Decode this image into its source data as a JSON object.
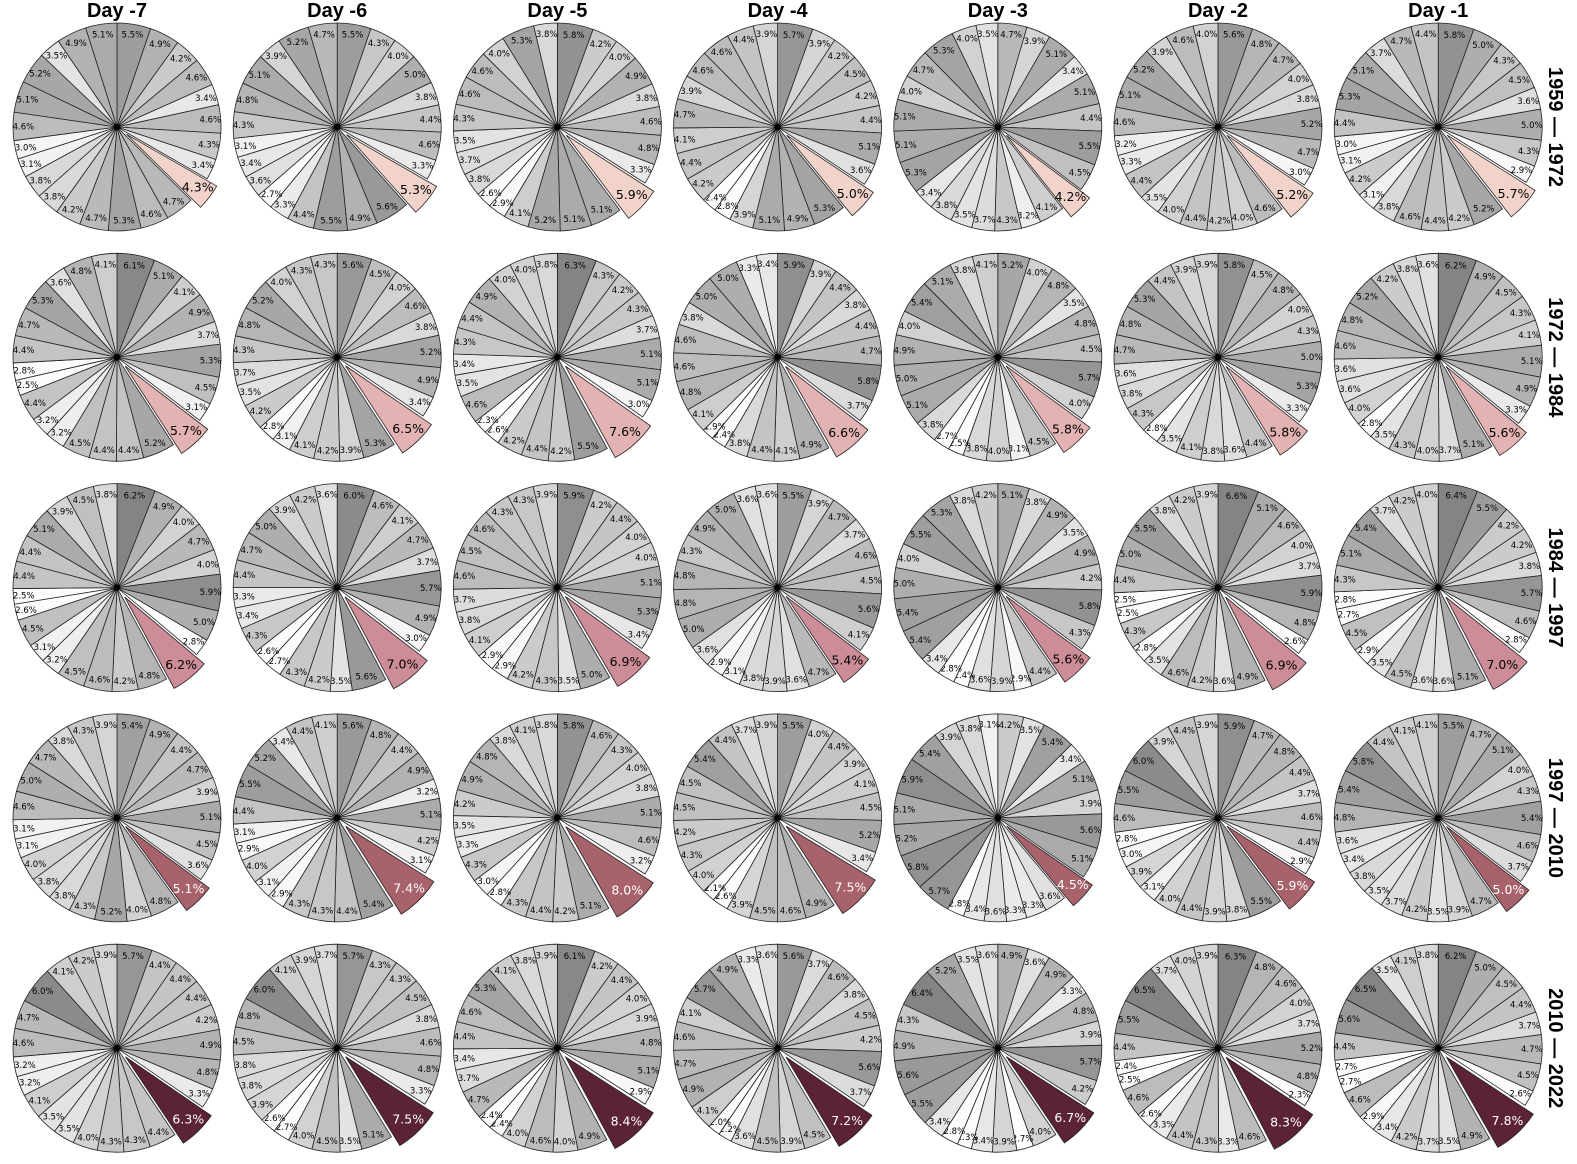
{
  "chart_data": {
    "type": "pie",
    "layout": "grid of pie charts, one per day (columns) and period (rows); 24 slices each, one slice highlighted and exploded",
    "columns": [
      "Day -7",
      "Day -6",
      "Day -5",
      "Day -4",
      "Day -3",
      "Day -2",
      "Day -1"
    ],
    "rows": [
      "1959 — 1972",
      "1972 — 1984",
      "1984 — 1997",
      "1997 — 2010",
      "2010 — 2022"
    ],
    "highlight_colors": [
      "#f2d3ca",
      "#e3b2b2",
      "#cc8c98",
      "#a8626c",
      "#5c2334"
    ],
    "slice_order": "clockwise from 12 o'clock",
    "pies": [
      [
        [
          5.5,
          4.9,
          4.2,
          4.6,
          3.4,
          4.6,
          4.3,
          3.4,
          4.3,
          4.7,
          4.6,
          5.3,
          4.7,
          4.2,
          3.8,
          3.8,
          3.1,
          3.0,
          4.6,
          5.1,
          5.2,
          3.5,
          4.9,
          5.1
        ],
        [
          5.5,
          4.3,
          4.0,
          5.0,
          3.8,
          4.4,
          4.6,
          3.3,
          5.3,
          5.6,
          4.9,
          5.5,
          4.4,
          3.3,
          2.7,
          3.6,
          3.4,
          3.1,
          4.3,
          4.8,
          5.1,
          3.9,
          5.2,
          4.7
        ],
        [
          5.8,
          4.2,
          4.0,
          4.9,
          3.8,
          4.6,
          4.8,
          3.3,
          5.9,
          5.1,
          5.1,
          5.2,
          4.1,
          2.9,
          2.6,
          3.8,
          3.7,
          3.5,
          4.3,
          4.6,
          4.6,
          4.0,
          5.3,
          3.8
        ],
        [
          5.7,
          3.9,
          4.2,
          4.5,
          4.2,
          4.4,
          5.1,
          3.6,
          5.0,
          5.3,
          4.9,
          5.1,
          3.9,
          2.8,
          2.4,
          4.2,
          4.4,
          4.1,
          4.7,
          3.9,
          4.6,
          4.6,
          4.4,
          3.9
        ],
        [
          4.7,
          3.9,
          5.1,
          3.4,
          5.1,
          4.4,
          5.5,
          4.5,
          4.2,
          4.1,
          3.2,
          4.3,
          3.7,
          3.5,
          3.8,
          3.4,
          5.3,
          5.1,
          5.1,
          4.0,
          4.7,
          5.3,
          4.0,
          3.5
        ],
        [
          5.6,
          4.8,
          4.7,
          4.0,
          3.8,
          5.2,
          4.7,
          3.0,
          5.2,
          4.6,
          4.0,
          4.2,
          4.4,
          4.0,
          3.5,
          4.4,
          3.3,
          3.2,
          4.6,
          5.1,
          5.2,
          3.9,
          4.6,
          4.0
        ],
        [
          5.8,
          5.0,
          4.3,
          4.5,
          3.6,
          5.0,
          4.3,
          2.9,
          5.7,
          5.2,
          4.2,
          4.4,
          4.6,
          3.8,
          3.1,
          4.2,
          3.1,
          3.0,
          4.4,
          5.3,
          5.1,
          3.7,
          4.7,
          4.4
        ]
      ],
      [
        [
          6.1,
          5.1,
          4.1,
          4.9,
          3.7,
          5.3,
          4.5,
          3.1,
          5.7,
          5.2,
          4.4,
          4.4,
          4.5,
          3.2,
          3.2,
          4.4,
          2.5,
          2.8,
          4.4,
          4.7,
          5.3,
          3.6,
          4.8,
          4.1
        ],
        [
          5.6,
          4.5,
          4.0,
          4.6,
          3.8,
          5.2,
          4.9,
          3.4,
          6.5,
          5.3,
          3.9,
          4.2,
          4.1,
          3.1,
          2.8,
          4.2,
          3.5,
          3.7,
          4.3,
          4.8,
          5.2,
          4.0,
          4.3,
          4.3
        ],
        [
          6.3,
          4.3,
          4.2,
          4.3,
          3.7,
          5.1,
          5.1,
          3.0,
          7.6,
          5.5,
          4.2,
          4.4,
          4.2,
          2.6,
          2.3,
          4.6,
          3.5,
          3.4,
          4.3,
          4.4,
          4.9,
          4.0,
          4.0,
          3.8
        ],
        [
          5.9,
          3.9,
          4.4,
          3.8,
          4.4,
          4.7,
          5.8,
          3.7,
          6.6,
          4.9,
          4.1,
          4.4,
          3.8,
          2.4,
          1.9,
          4.1,
          4.8,
          4.6,
          4.6,
          3.8,
          5.0,
          5.0,
          3.3,
          3.4
        ],
        [
          5.2,
          4.0,
          4.8,
          3.5,
          4.8,
          4.5,
          5.7,
          4.0,
          5.8,
          4.5,
          3.1,
          4.0,
          3.8,
          2.5,
          2.7,
          3.8,
          5.1,
          5.0,
          4.9,
          4.0,
          5.4,
          5.1,
          3.8,
          4.1
        ],
        [
          5.8,
          4.5,
          4.8,
          4.0,
          4.3,
          5.0,
          5.3,
          3.3,
          5.8,
          4.4,
          3.6,
          3.8,
          4.1,
          3.5,
          2.8,
          4.3,
          3.8,
          3.6,
          4.7,
          4.8,
          5.3,
          4.4,
          3.9,
          3.9
        ],
        [
          6.2,
          4.9,
          4.5,
          4.3,
          4.1,
          5.1,
          4.9,
          3.3,
          5.6,
          5.1,
          3.7,
          4.0,
          4.3,
          3.5,
          2.8,
          4.0,
          3.6,
          3.6,
          4.6,
          4.8,
          5.2,
          4.2,
          3.8,
          3.6
        ]
      ],
      [
        [
          6.2,
          4.9,
          4.0,
          4.7,
          4.0,
          5.9,
          5.0,
          2.8,
          6.2,
          4.8,
          4.2,
          4.6,
          4.5,
          3.2,
          3.1,
          4.5,
          2.6,
          2.5,
          4.4,
          4.4,
          5.1,
          3.9,
          4.5,
          3.8
        ],
        [
          6.0,
          4.6,
          4.1,
          4.7,
          3.7,
          5.7,
          4.9,
          3.0,
          7.0,
          5.6,
          3.5,
          4.2,
          4.3,
          2.7,
          2.6,
          4.3,
          3.4,
          3.3,
          4.4,
          4.7,
          5.0,
          3.9,
          4.2,
          3.6
        ],
        [
          5.9,
          4.2,
          4.4,
          4.0,
          4.0,
          5.1,
          5.3,
          3.4,
          6.9,
          5.0,
          3.5,
          4.3,
          4.2,
          2.9,
          2.9,
          4.1,
          3.8,
          3.7,
          4.6,
          4.5,
          4.6,
          4.3,
          4.3,
          3.9
        ],
        [
          5.5,
          3.9,
          4.7,
          3.7,
          4.6,
          4.5,
          5.6,
          4.1,
          5.4,
          4.7,
          3.6,
          3.9,
          3.8,
          3.1,
          2.9,
          3.6,
          5.0,
          4.8,
          4.8,
          4.3,
          4.9,
          5.0,
          3.6,
          3.6
        ],
        [
          5.1,
          3.8,
          4.9,
          3.5,
          4.9,
          4.2,
          5.8,
          4.3,
          5.6,
          4.4,
          2.9,
          3.9,
          3.6,
          2.4,
          2.8,
          3.4,
          5.4,
          5.4,
          5.0,
          4.0,
          5.5,
          5.3,
          3.8,
          4.2
        ],
        [
          6.6,
          5.1,
          4.6,
          4.0,
          3.7,
          5.9,
          4.8,
          2.6,
          6.9,
          4.9,
          3.6,
          4.2,
          4.6,
          3.5,
          2.8,
          4.3,
          2.5,
          2.5,
          4.4,
          5.0,
          5.5,
          3.8,
          4.2,
          3.9
        ],
        [
          6.4,
          5.5,
          4.2,
          4.2,
          3.8,
          5.7,
          4.6,
          2.8,
          7.0,
          5.1,
          3.6,
          3.6,
          4.5,
          3.5,
          2.9,
          4.5,
          2.7,
          2.8,
          4.3,
          5.1,
          5.4,
          3.7,
          4.2,
          4.0
        ]
      ],
      [
        [
          5.4,
          4.9,
          4.4,
          4.7,
          3.9,
          5.1,
          4.5,
          3.6,
          5.1,
          4.8,
          4.0,
          5.2,
          4.3,
          3.8,
          3.8,
          4.0,
          3.1,
          3.1,
          4.6,
          5.0,
          4.7,
          3.8,
          4.3,
          3.9
        ],
        [
          5.6,
          4.8,
          4.4,
          4.9,
          3.2,
          5.1,
          4.2,
          3.1,
          7.4,
          5.4,
          4.4,
          4.3,
          4.3,
          2.9,
          3.1,
          4.0,
          2.9,
          3.1,
          4.4,
          5.5,
          5.2,
          3.4,
          4.4,
          4.1
        ],
        [
          5.8,
          4.6,
          4.3,
          4.0,
          3.8,
          5.1,
          4.6,
          3.2,
          8.0,
          5.1,
          4.2,
          4.4,
          4.3,
          2.8,
          3.0,
          4.3,
          3.3,
          3.5,
          4.2,
          4.9,
          4.8,
          3.8,
          4.1,
          3.8
        ],
        [
          5.5,
          4.0,
          4.4,
          3.9,
          4.1,
          4.5,
          5.2,
          3.4,
          7.5,
          4.9,
          4.6,
          4.5,
          3.9,
          2.6,
          2.1,
          4.0,
          4.3,
          4.2,
          4.5,
          4.5,
          5.4,
          4.4,
          3.7,
          3.9
        ],
        [
          4.2,
          3.5,
          5.4,
          3.4,
          5.1,
          3.9,
          5.6,
          5.1,
          4.5,
          3.6,
          3.3,
          3.3,
          3.6,
          3.4,
          2.8,
          5.7,
          5.8,
          5.2,
          5.1,
          5.9,
          5.4,
          3.9,
          3.8,
          3.1
        ],
        [
          5.9,
          4.7,
          4.8,
          4.4,
          3.7,
          4.6,
          4.4,
          2.9,
          5.9,
          5.5,
          3.8,
          3.9,
          4.4,
          4.0,
          3.1,
          3.9,
          3.0,
          2.8,
          4.6,
          5.5,
          6.0,
          3.9,
          4.4,
          3.9
        ],
        [
          5.5,
          4.7,
          5.1,
          4.0,
          4.3,
          5.4,
          4.6,
          3.7,
          5.0,
          4.7,
          3.9,
          3.5,
          4.2,
          3.7,
          3.5,
          3.8,
          3.4,
          3.6,
          4.8,
          5.4,
          5.8,
          4.4,
          4.1,
          4.1
        ]
      ],
      [
        [
          5.7,
          4.4,
          4.4,
          4.4,
          4.2,
          4.9,
          4.8,
          3.3,
          6.3,
          4.4,
          4.3,
          4.3,
          4.0,
          3.5,
          3.5,
          4.1,
          3.2,
          3.2,
          4.6,
          4.7,
          6.0,
          4.1,
          4.2,
          3.9
        ],
        [
          5.7,
          4.3,
          4.3,
          4.5,
          3.8,
          4.6,
          4.8,
          3.3,
          7.5,
          5.1,
          3.5,
          4.5,
          4.0,
          2.7,
          2.6,
          3.9,
          3.8,
          3.8,
          4.5,
          4.8,
          6.0,
          4.1,
          3.9,
          3.7
        ],
        [
          6.1,
          4.2,
          4.4,
          4.0,
          3.9,
          4.8,
          5.1,
          2.9,
          8.4,
          4.9,
          4.0,
          4.6,
          4.0,
          2.4,
          2.4,
          4.7,
          3.7,
          3.4,
          4.4,
          4.6,
          5.3,
          4.1,
          3.8,
          3.9
        ],
        [
          5.6,
          3.7,
          4.6,
          3.8,
          4.5,
          4.2,
          5.6,
          3.7,
          7.2,
          4.5,
          3.9,
          4.5,
          3.6,
          2.2,
          2.0,
          4.1,
          4.9,
          4.7,
          4.6,
          4.1,
          5.7,
          4.9,
          3.3,
          3.6
        ],
        [
          4.9,
          3.6,
          4.9,
          3.3,
          4.8,
          3.9,
          5.7,
          4.2,
          6.7,
          4.0,
          2.7,
          3.9,
          3.4,
          2.3,
          2.8,
          3.4,
          5.5,
          5.6,
          4.9,
          4.3,
          6.4,
          5.2,
          3.5,
          3.6
        ],
        [
          6.3,
          4.8,
          4.6,
          4.0,
          3.7,
          5.2,
          4.8,
          2.3,
          8.3,
          4.6,
          3.3,
          4.3,
          4.4,
          3.3,
          2.6,
          4.6,
          2.5,
          2.4,
          4.4,
          5.5,
          6.5,
          3.7,
          4.0,
          3.9
        ],
        [
          6.2,
          5.0,
          4.5,
          4.4,
          3.7,
          4.7,
          4.5,
          2.6,
          7.8,
          4.9,
          3.5,
          3.7,
          4.2,
          3.4,
          2.9,
          4.6,
          2.7,
          2.7,
          4.4,
          5.6,
          6.5,
          3.5,
          4.1,
          3.8
        ]
      ]
    ]
  }
}
